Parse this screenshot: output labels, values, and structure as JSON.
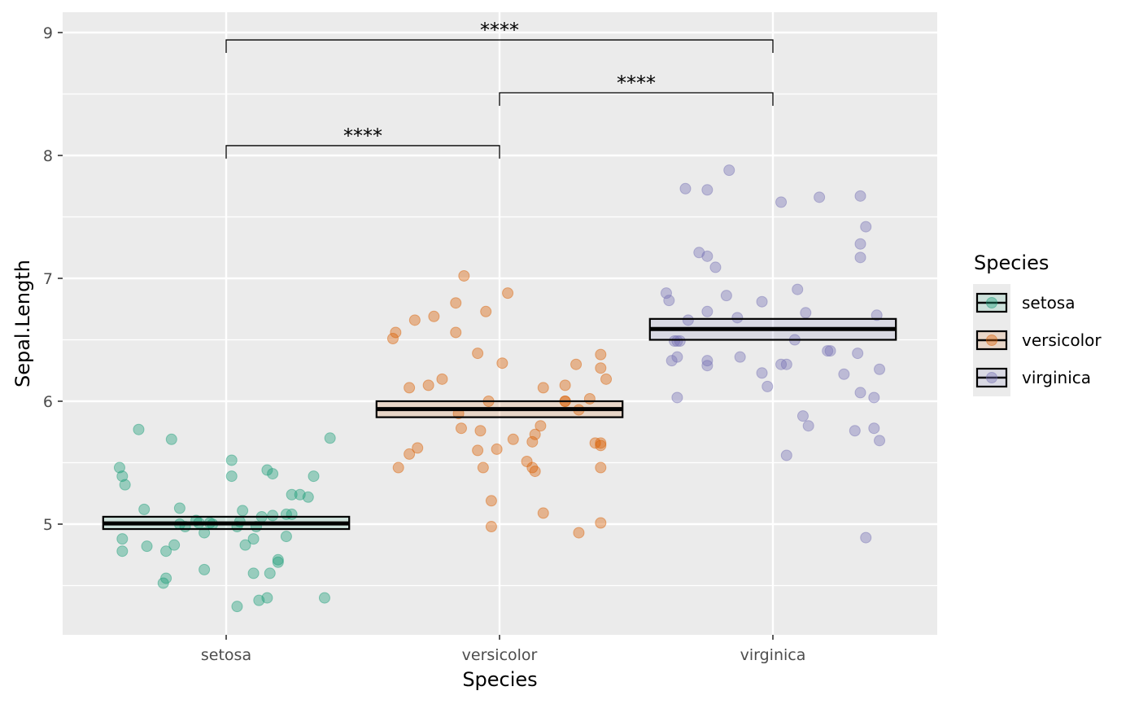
{
  "chart_data": {
    "type": "scatter",
    "xlabel": "Species",
    "ylabel": "Sepal.Length",
    "categories": [
      "setosa",
      "versicolor",
      "virginica"
    ],
    "ylim": [
      4.1,
      9.2
    ],
    "yticks": [
      "5",
      "6",
      "7",
      "8",
      "9"
    ],
    "ytick_values": [
      5,
      6,
      7,
      8,
      9
    ],
    "grid": true,
    "legend": {
      "title": "Species",
      "placement": "right",
      "entries": [
        "setosa",
        "versicolor",
        "virginica"
      ]
    },
    "colors": {
      "setosa": "#1b9e77",
      "versicolor": "#d95f02",
      "virginica": "#7570b3"
    },
    "series": [
      {
        "name": "setosa",
        "mean": 5.006,
        "ci": [
          4.96,
          5.06
        ],
        "points": [
          [
            -0.39,
            5.46
          ],
          [
            -0.38,
            5.39
          ],
          [
            -0.37,
            5.32
          ],
          [
            -0.32,
            5.77
          ],
          [
            -0.3,
            5.12
          ],
          [
            -0.29,
            4.82
          ],
          [
            -0.38,
            4.88
          ],
          [
            -0.38,
            4.78
          ],
          [
            -0.2,
            5.69
          ],
          [
            -0.17,
            5.13
          ],
          [
            -0.19,
            4.83
          ],
          [
            -0.22,
            4.78
          ],
          [
            -0.22,
            4.56
          ],
          [
            -0.23,
            4.52
          ],
          [
            -0.15,
            4.98
          ],
          [
            -0.17,
            5.0
          ],
          [
            -0.11,
            5.03
          ],
          [
            -0.1,
            5.01
          ],
          [
            -0.08,
            4.93
          ],
          [
            -0.06,
            5.01
          ],
          [
            -0.05,
            5.0
          ],
          [
            -0.08,
            4.63
          ],
          [
            0.02,
            5.52
          ],
          [
            0.02,
            5.39
          ],
          [
            0.06,
            5.11
          ],
          [
            0.04,
            4.98
          ],
          [
            0.05,
            5.02
          ],
          [
            0.07,
            4.83
          ],
          [
            0.1,
            4.88
          ],
          [
            0.13,
            5.06
          ],
          [
            0.17,
            5.07
          ],
          [
            0.15,
            5.44
          ],
          [
            0.17,
            5.41
          ],
          [
            0.22,
            5.08
          ],
          [
            0.24,
            5.08
          ],
          [
            0.24,
            5.24
          ],
          [
            0.27,
            5.24
          ],
          [
            0.3,
            5.22
          ],
          [
            0.32,
            5.39
          ],
          [
            0.38,
            5.7
          ],
          [
            0.22,
            4.9
          ],
          [
            0.19,
            4.71
          ],
          [
            0.19,
            4.69
          ],
          [
            0.1,
            4.6
          ],
          [
            0.16,
            4.6
          ],
          [
            0.04,
            4.33
          ],
          [
            0.12,
            4.38
          ],
          [
            0.15,
            4.4
          ],
          [
            0.36,
            4.4
          ],
          [
            0.11,
            4.98
          ]
        ]
      },
      {
        "name": "versicolor",
        "mean": 5.936,
        "ci": [
          5.87,
          6.0
        ],
        "points": [
          [
            -0.39,
            6.51
          ],
          [
            -0.38,
            6.56
          ],
          [
            -0.31,
            6.66
          ],
          [
            -0.24,
            6.69
          ],
          [
            -0.16,
            6.8
          ],
          [
            -0.13,
            7.02
          ],
          [
            -0.05,
            6.73
          ],
          [
            0.03,
            6.88
          ],
          [
            -0.16,
            6.56
          ],
          [
            -0.08,
            6.39
          ],
          [
            0.01,
            6.31
          ],
          [
            -0.33,
            6.11
          ],
          [
            -0.26,
            6.13
          ],
          [
            -0.21,
            6.18
          ],
          [
            -0.15,
            5.9
          ],
          [
            -0.14,
            5.78
          ],
          [
            -0.07,
            5.76
          ],
          [
            -0.04,
            6.0
          ],
          [
            -0.01,
            5.61
          ],
          [
            -0.08,
            5.6
          ],
          [
            -0.06,
            5.46
          ],
          [
            -0.3,
            5.62
          ],
          [
            -0.33,
            5.57
          ],
          [
            -0.37,
            5.46
          ],
          [
            -0.03,
            5.19
          ],
          [
            -0.03,
            4.98
          ],
          [
            0.05,
            5.69
          ],
          [
            0.1,
            5.51
          ],
          [
            0.12,
            5.67
          ],
          [
            0.12,
            5.46
          ],
          [
            0.13,
            5.43
          ],
          [
            0.13,
            5.73
          ],
          [
            0.15,
            5.8
          ],
          [
            0.16,
            6.11
          ],
          [
            0.24,
            6.0
          ],
          [
            0.24,
            6.13
          ],
          [
            0.24,
            6.0
          ],
          [
            0.29,
            5.93
          ],
          [
            0.33,
            6.02
          ],
          [
            0.28,
            6.3
          ],
          [
            0.37,
            6.38
          ],
          [
            0.37,
            6.27
          ],
          [
            0.39,
            6.18
          ],
          [
            0.35,
            5.66
          ],
          [
            0.37,
            5.66
          ],
          [
            0.37,
            5.64
          ],
          [
            0.37,
            5.46
          ],
          [
            0.16,
            5.09
          ],
          [
            0.29,
            4.93
          ],
          [
            0.37,
            5.01
          ]
        ]
      },
      {
        "name": "virginica",
        "mean": 6.588,
        "ci": [
          6.5,
          6.67
        ],
        "points": [
          [
            -0.32,
            7.73
          ],
          [
            -0.24,
            7.72
          ],
          [
            -0.16,
            7.88
          ],
          [
            0.03,
            7.62
          ],
          [
            0.17,
            7.66
          ],
          [
            0.32,
            7.67
          ],
          [
            0.34,
            7.42
          ],
          [
            0.32,
            7.28
          ],
          [
            0.32,
            7.17
          ],
          [
            -0.27,
            7.21
          ],
          [
            -0.24,
            7.18
          ],
          [
            -0.21,
            7.09
          ],
          [
            -0.38,
            6.82
          ],
          [
            -0.39,
            6.88
          ],
          [
            -0.34,
            6.49
          ],
          [
            -0.35,
            6.49
          ],
          [
            -0.36,
            6.49
          ],
          [
            -0.31,
            6.66
          ],
          [
            -0.24,
            6.73
          ],
          [
            -0.17,
            6.86
          ],
          [
            -0.13,
            6.68
          ],
          [
            -0.04,
            6.81
          ],
          [
            0.09,
            6.91
          ],
          [
            0.12,
            6.72
          ],
          [
            0.38,
            6.7
          ],
          [
            -0.37,
            6.33
          ],
          [
            -0.35,
            6.36
          ],
          [
            -0.24,
            6.33
          ],
          [
            -0.24,
            6.29
          ],
          [
            -0.12,
            6.36
          ],
          [
            -0.04,
            6.23
          ],
          [
            -0.02,
            6.12
          ],
          [
            0.03,
            6.3
          ],
          [
            0.05,
            6.3
          ],
          [
            0.08,
            6.5
          ],
          [
            0.21,
            6.41
          ],
          [
            0.2,
            6.41
          ],
          [
            0.26,
            6.22
          ],
          [
            0.31,
            6.39
          ],
          [
            0.39,
            6.26
          ],
          [
            -0.35,
            6.03
          ],
          [
            0.11,
            5.88
          ],
          [
            0.13,
            5.8
          ],
          [
            0.32,
            6.07
          ],
          [
            0.37,
            6.03
          ],
          [
            0.3,
            5.76
          ],
          [
            0.37,
            5.78
          ],
          [
            0.39,
            5.68
          ],
          [
            0.05,
            5.56
          ],
          [
            0.34,
            4.89
          ]
        ]
      }
    ],
    "annotations": [
      {
        "label": "****",
        "from": 0,
        "to": 1,
        "y": 8.08
      },
      {
        "label": "****",
        "from": 1,
        "to": 2,
        "y": 8.51
      },
      {
        "label": "****",
        "from": 0,
        "to": 2,
        "y": 8.94
      }
    ]
  }
}
